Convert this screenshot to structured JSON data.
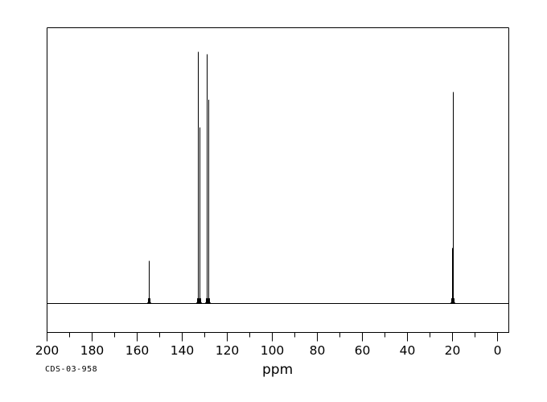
{
  "colors": {
    "background": "#ffffff",
    "trace": "#000000",
    "text": "#000000"
  },
  "footer": {
    "sample_id": "CDS-03-958"
  },
  "chart_data": {
    "type": "line",
    "title": "",
    "xlabel": "ppm",
    "ylabel": "",
    "grid": false,
    "legend": false,
    "x_axis": {
      "min": 0,
      "max": 200,
      "reversed": true,
      "major_tick_step": 20,
      "minor_tick_step": 10,
      "tick_labels": [
        "200",
        "180",
        "160",
        "140",
        "120",
        "100",
        "80",
        "60",
        "40",
        "20",
        "0"
      ]
    },
    "y_axis": {
      "visible": false,
      "baseline_intensity": 0,
      "max_rel_intensity": 1.0
    },
    "peaks": [
      {
        "ppm": 154.6,
        "rel_intensity": 0.17
      },
      {
        "ppm": 132.7,
        "rel_intensity": 1.0
      },
      {
        "ppm": 132.0,
        "rel_intensity": 0.7
      },
      {
        "ppm": 129.1,
        "rel_intensity": 0.99
      },
      {
        "ppm": 128.2,
        "rel_intensity": 0.81
      },
      {
        "ppm": 20.0,
        "rel_intensity": 0.22
      },
      {
        "ppm": 19.6,
        "rel_intensity": 0.84
      }
    ]
  }
}
